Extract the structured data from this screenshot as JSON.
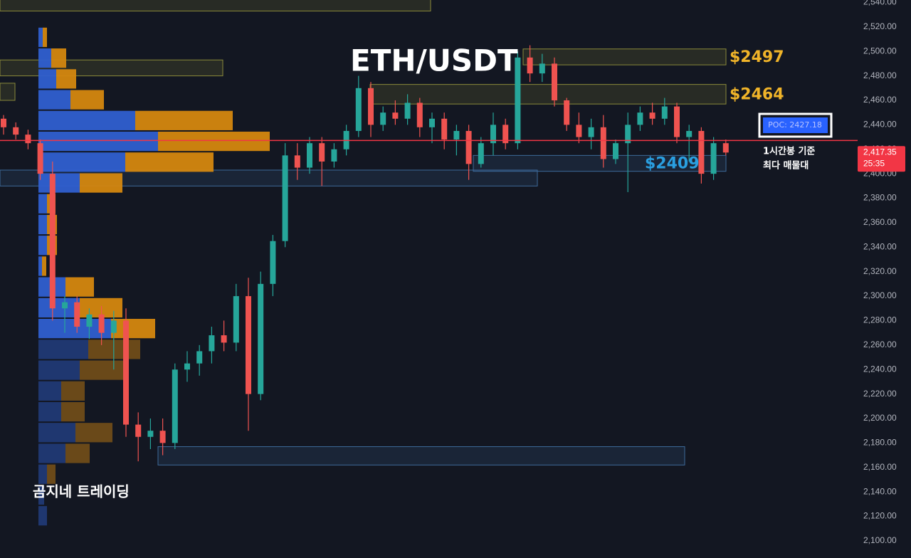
{
  "chart_data": {
    "type": "candlestick",
    "title": "ETH/USDT",
    "watermark": "곰지네 트레이딩",
    "notes": [
      "1시간봉 기준",
      "최다 매물대"
    ],
    "ylim": [
      2086,
      2542
    ],
    "yticks": [
      {
        "value": 2100,
        "label": "2,100.00"
      },
      {
        "value": 2120,
        "label": "2,120.00"
      },
      {
        "value": 2140,
        "label": "2,140.00"
      },
      {
        "value": 2160,
        "label": "2,160.00"
      },
      {
        "value": 2180,
        "label": "2,180.00"
      },
      {
        "value": 2200,
        "label": "2,200.00"
      },
      {
        "value": 2220,
        "label": "2,220.00"
      },
      {
        "value": 2240,
        "label": "2,240.00"
      },
      {
        "value": 2260,
        "label": "2,260.00"
      },
      {
        "value": 2280,
        "label": "2,280.00"
      },
      {
        "value": 2300,
        "label": "2,300.00"
      },
      {
        "value": 2320,
        "label": "2,320.00"
      },
      {
        "value": 2340,
        "label": "2,340.00"
      },
      {
        "value": 2360,
        "label": "2,360.00"
      },
      {
        "value": 2380,
        "label": "2,380.00"
      },
      {
        "value": 2400,
        "label": "2,400.00"
      },
      {
        "value": 2420,
        "label": "2,420.00"
      },
      {
        "value": 2440,
        "label": "2,440.00"
      },
      {
        "value": 2460,
        "label": "2,460.00"
      },
      {
        "value": 2480,
        "label": "2,480.00"
      },
      {
        "value": 2500,
        "label": "2,500.00"
      },
      {
        "value": 2520,
        "label": "2,520.00"
      },
      {
        "value": 2540,
        "label": "2,540.00"
      }
    ],
    "up_color": "#26a69a",
    "down_color": "#ef5350",
    "open": [
      2445,
      2438,
      2432,
      2425,
      2400,
      2290,
      2295,
      2275,
      2285,
      2270,
      2280,
      2195,
      2185,
      2190,
      2180,
      2240,
      2245,
      2255,
      2268,
      2262,
      2300,
      2220,
      2310,
      2345,
      2415,
      2405,
      2425,
      2410,
      2420,
      2435,
      2470,
      2440,
      2450,
      2445,
      2458,
      2438,
      2445,
      2428,
      2435,
      2408,
      2425,
      2440,
      2425,
      2495,
      2482,
      2490,
      2460,
      2440,
      2430,
      2438,
      2412,
      2425,
      2440,
      2450,
      2445,
      2455,
      2430,
      2435,
      2400,
      2425
    ],
    "high": [
      2448,
      2442,
      2436,
      2428,
      2410,
      2300,
      2300,
      2290,
      2292,
      2288,
      2290,
      2205,
      2200,
      2200,
      2245,
      2255,
      2260,
      2275,
      2280,
      2310,
      2315,
      2320,
      2350,
      2425,
      2425,
      2430,
      2430,
      2425,
      2440,
      2480,
      2475,
      2455,
      2460,
      2465,
      2462,
      2450,
      2450,
      2440,
      2440,
      2430,
      2450,
      2445,
      2500,
      2505,
      2498,
      2495,
      2462,
      2450,
      2445,
      2448,
      2428,
      2450,
      2455,
      2458,
      2462,
      2458,
      2440,
      2438,
      2430,
      2428
    ],
    "low": [
      2432,
      2428,
      2420,
      2395,
      2280,
      2270,
      2270,
      2265,
      2260,
      2240,
      2185,
      2165,
      2175,
      2170,
      2175,
      2230,
      2235,
      2245,
      2255,
      2255,
      2190,
      2215,
      2300,
      2340,
      2395,
      2400,
      2390,
      2405,
      2415,
      2430,
      2430,
      2435,
      2440,
      2440,
      2430,
      2425,
      2420,
      2415,
      2395,
      2405,
      2415,
      2420,
      2420,
      2475,
      2475,
      2455,
      2435,
      2425,
      2420,
      2405,
      2408,
      2385,
      2435,
      2440,
      2440,
      2425,
      2410,
      2392,
      2395,
      2415
    ],
    "close": [
      2438,
      2432,
      2425,
      2400,
      2290,
      2295,
      2275,
      2285,
      2270,
      2280,
      2195,
      2185,
      2190,
      2180,
      2240,
      2245,
      2255,
      2268,
      2262,
      2300,
      2220,
      2310,
      2345,
      2415,
      2405,
      2425,
      2410,
      2420,
      2435,
      2470,
      2440,
      2450,
      2445,
      2458,
      2438,
      2445,
      2428,
      2435,
      2408,
      2425,
      2440,
      2425,
      2495,
      2482,
      2490,
      2460,
      2440,
      2430,
      2438,
      2412,
      2425,
      2440,
      2450,
      2445,
      2455,
      2430,
      2435,
      2400,
      2425,
      2417.35
    ],
    "volume_profile": {
      "bins": [
        2112,
        2129,
        2146,
        2163,
        2180,
        2197,
        2214,
        2231,
        2248,
        2265,
        2282,
        2299,
        2316,
        2333,
        2350,
        2367,
        2384,
        2401,
        2418,
        2435,
        2452,
        2469,
        2486,
        2503,
        2520
      ],
      "buy": [
        12,
        8,
        12,
        38,
        52,
        32,
        32,
        58,
        70,
        102,
        58,
        38,
        5,
        12,
        12,
        12,
        58,
        122,
        168,
        136,
        45,
        25,
        18,
        6
      ],
      "sell": [
        0,
        0,
        12,
        34,
        52,
        33,
        33,
        62,
        73,
        62,
        60,
        40,
        6,
        14,
        14,
        12,
        60,
        124,
        157,
        137,
        47,
        28,
        21,
        6
      ],
      "buy_color": "#2f5fd0",
      "sell_color": "#d4870f",
      "value_area": [
        2265,
        2520
      ]
    },
    "zones": [
      {
        "low": 2533,
        "high": 2550,
        "color": "#8a8a3a"
      },
      {
        "low": 2480,
        "high": 2493,
        "color": "#8a8a3a"
      },
      {
        "low": 2460,
        "high": 2474,
        "color": "#8a8a3a"
      },
      {
        "low": 2489,
        "high": 2502,
        "color": "#8a8a3a",
        "label": "$2497",
        "label_color": "#f0b429"
      },
      {
        "low": 2457,
        "high": 2473,
        "color": "#8a8a3a",
        "label": "$2464",
        "label_color": "#f0b429"
      },
      {
        "low": 2402,
        "high": 2415,
        "color": "#3d6a9a",
        "label": "$2409",
        "label_color": "#2a9fe0"
      },
      {
        "low": 2390,
        "high": 2403,
        "color": "#3d6a9a"
      },
      {
        "low": 2162,
        "high": 2177,
        "color": "#3d6a9a"
      }
    ],
    "poc": {
      "value": 2427.18,
      "label": "POC: 2427.18",
      "color": "#f23645"
    },
    "last_price": {
      "value": 2417.35,
      "label": "2,417.35",
      "color": "#f23645"
    },
    "countdown": "25:35"
  }
}
